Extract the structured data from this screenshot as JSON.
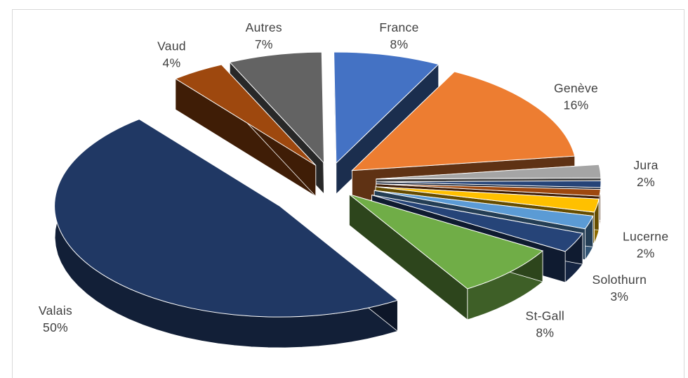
{
  "chart_data": {
    "type": "pie",
    "style": "3d-exploded",
    "slices": [
      {
        "label": "France",
        "value": 8,
        "value_text": "8%",
        "color": "#4472c4"
      },
      {
        "label": "Genève",
        "value": 16,
        "value_text": "16%",
        "color": "#ed7d31"
      },
      {
        "label": "Jura",
        "value": 2,
        "value_text": "2%",
        "color": "#a5a5a5"
      },
      {
        "label": "",
        "value": 1,
        "value_text": "",
        "color": "#264478"
      },
      {
        "label": "",
        "value": 1,
        "value_text": "",
        "color": "#9e480e"
      },
      {
        "label": "Lucerne",
        "value": 2,
        "value_text": "2%",
        "color": "#ffc000"
      },
      {
        "label": "",
        "value": 2,
        "value_text": "",
        "color": "#5b9bd5"
      },
      {
        "label": "Solothurn",
        "value": 3,
        "value_text": "3%",
        "color": "#264478"
      },
      {
        "label": "St-Gall",
        "value": 8,
        "value_text": "8%",
        "color": "#70ad47"
      },
      {
        "label": "Valais",
        "value": 50,
        "value_text": "50%",
        "color": "#203864"
      },
      {
        "label": "Vaud",
        "value": 4,
        "value_text": "4%",
        "color": "#9e480e"
      },
      {
        "label": "Autres",
        "value": 7,
        "value_text": "7%",
        "color": "#636363"
      }
    ]
  }
}
